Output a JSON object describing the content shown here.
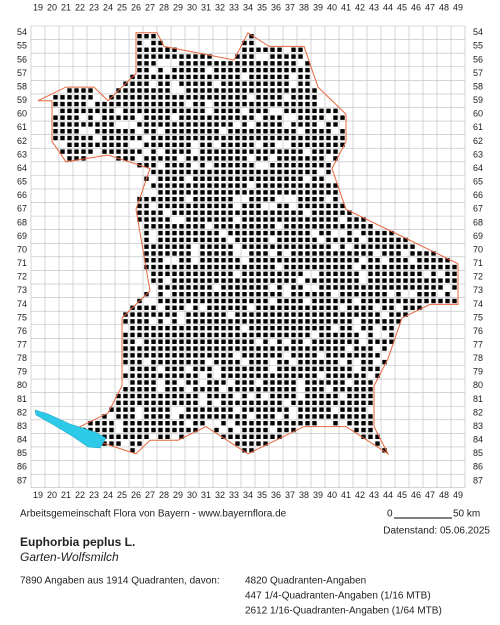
{
  "map": {
    "columns": [
      19,
      20,
      21,
      22,
      23,
      24,
      25,
      26,
      27,
      28,
      29,
      30,
      31,
      32,
      33,
      34,
      35,
      36,
      37,
      38,
      39,
      40,
      41,
      42,
      43,
      44,
      45,
      46,
      47,
      48,
      49
    ],
    "rows": [
      54,
      55,
      56,
      57,
      58,
      59,
      60,
      61,
      62,
      63,
      64,
      65,
      66,
      67,
      68,
      69,
      70,
      71,
      72,
      73,
      74,
      75,
      76,
      77,
      78,
      79,
      80,
      81,
      82,
      83,
      84,
      85,
      86,
      87
    ],
    "credit": "Arbeitsgemeinschaft Flora von Bayern - www.bayernflora.de",
    "scale_start": "0",
    "scale_end": "50 km",
    "date": "Datenstand: 05.06.2025"
  },
  "species": {
    "name": "Euphorbia peplus L.",
    "common_name": "Garten-Wolfsmilch"
  },
  "stats": {
    "summary": "7890 Angaben aus 1914 Quadranten, davon:",
    "lines": [
      "4820 Quadranten-Angaben",
      "447 1/4-Quadranten-Angaben (1/16 MTB)",
      "2612 1/16-Quadranten-Angaben (1/64 MTB)"
    ]
  }
}
